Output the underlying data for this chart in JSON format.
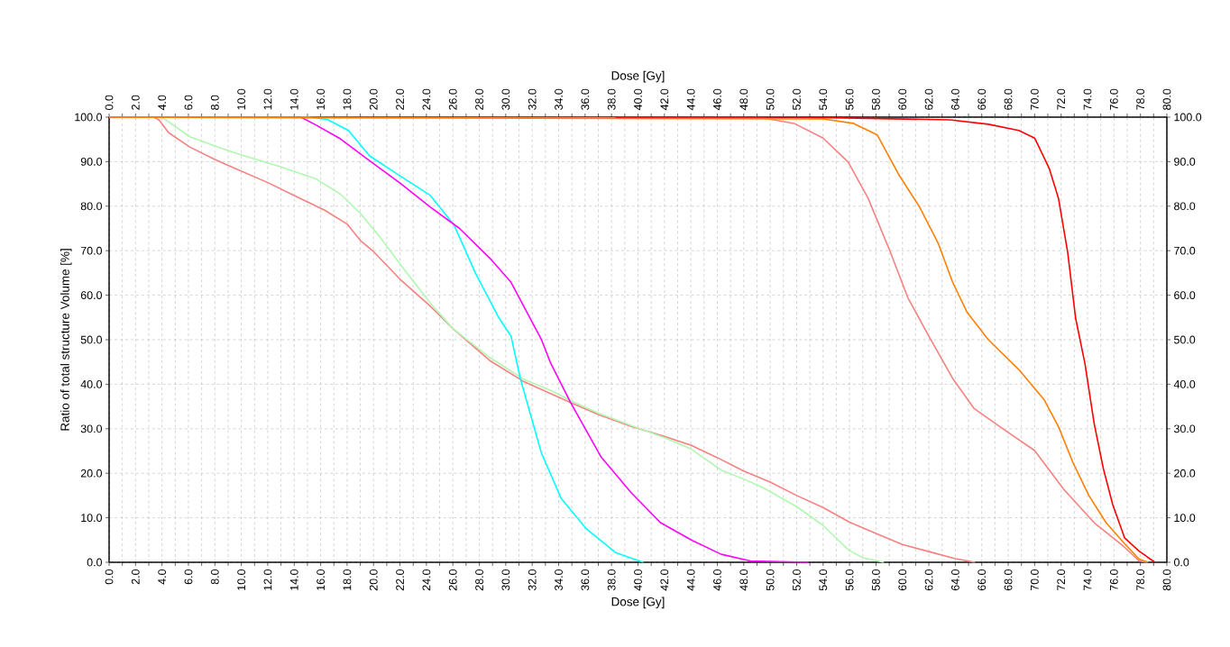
{
  "chart_data": {
    "type": "line",
    "xlabel": "Dose [Gy]",
    "x2label": "Dose [Gy]",
    "ylabel": "Ratio of total structure Volume [%]",
    "grid": true,
    "xlim": [
      0,
      80
    ],
    "x2lim": [
      0,
      80
    ],
    "ylim": [
      0,
      100
    ],
    "y2lim": [
      0,
      100
    ],
    "xticks": [
      {
        "value": 0,
        "label": "0.0"
      },
      {
        "value": 1,
        "label": null
      },
      {
        "value": 2,
        "label": "2.0"
      },
      {
        "value": 3,
        "label": null
      },
      {
        "value": 4,
        "label": "4.0"
      },
      {
        "value": 5,
        "label": null
      },
      {
        "value": 6,
        "label": "6.0"
      },
      {
        "value": 7,
        "label": null
      },
      {
        "value": 8,
        "label": "8.0"
      },
      {
        "value": 9,
        "label": null
      },
      {
        "value": 10,
        "label": "10.0"
      },
      {
        "value": 11,
        "label": null
      },
      {
        "value": 12,
        "label": "12.0"
      },
      {
        "value": 13,
        "label": null
      },
      {
        "value": 14,
        "label": "14.0"
      },
      {
        "value": 15,
        "label": null
      },
      {
        "value": 16,
        "label": "16.0"
      },
      {
        "value": 17,
        "label": null
      },
      {
        "value": 18,
        "label": "18.0"
      },
      {
        "value": 19,
        "label": null
      },
      {
        "value": 20,
        "label": "20.0"
      },
      {
        "value": 21,
        "label": null
      },
      {
        "value": 22,
        "label": "22.0"
      },
      {
        "value": 23,
        "label": null
      },
      {
        "value": 24,
        "label": "24.0"
      },
      {
        "value": 25,
        "label": null
      },
      {
        "value": 26,
        "label": "26.0"
      },
      {
        "value": 27,
        "label": null
      },
      {
        "value": 28,
        "label": "28.0"
      },
      {
        "value": 29,
        "label": null
      },
      {
        "value": 30,
        "label": "30.0"
      },
      {
        "value": 31,
        "label": null
      },
      {
        "value": 32,
        "label": "32.0"
      },
      {
        "value": 33,
        "label": null
      },
      {
        "value": 34,
        "label": "34.0"
      },
      {
        "value": 35,
        "label": null
      },
      {
        "value": 36,
        "label": "36.0"
      },
      {
        "value": 37,
        "label": null
      },
      {
        "value": 38,
        "label": "38.0"
      },
      {
        "value": 39,
        "label": null
      },
      {
        "value": 40,
        "label": "40.0"
      },
      {
        "value": 41,
        "label": null
      },
      {
        "value": 42,
        "label": "42.0"
      },
      {
        "value": 43,
        "label": null
      },
      {
        "value": 44,
        "label": "44.0"
      },
      {
        "value": 45,
        "label": null
      },
      {
        "value": 46,
        "label": "46.0"
      },
      {
        "value": 47,
        "label": null
      },
      {
        "value": 48,
        "label": "48.0"
      },
      {
        "value": 49,
        "label": null
      },
      {
        "value": 50,
        "label": "50.0"
      },
      {
        "value": 51,
        "label": null
      },
      {
        "value": 52,
        "label": "52.0"
      },
      {
        "value": 53,
        "label": null
      },
      {
        "value": 54,
        "label": "54.0"
      },
      {
        "value": 55,
        "label": null
      },
      {
        "value": 56,
        "label": "56.0"
      },
      {
        "value": 57,
        "label": null
      },
      {
        "value": 58,
        "label": "58.0"
      },
      {
        "value": 59,
        "label": null
      },
      {
        "value": 60,
        "label": "60.0"
      },
      {
        "value": 61,
        "label": null
      },
      {
        "value": 62,
        "label": "62.0"
      },
      {
        "value": 63,
        "label": null
      },
      {
        "value": 64,
        "label": "64.0"
      },
      {
        "value": 65,
        "label": null
      },
      {
        "value": 66,
        "label": "66.0"
      },
      {
        "value": 67,
        "label": null
      },
      {
        "value": 68,
        "label": "68.0"
      },
      {
        "value": 69,
        "label": null
      },
      {
        "value": 70,
        "label": "70.0"
      },
      {
        "value": 71,
        "label": null
      },
      {
        "value": 72,
        "label": "72.0"
      },
      {
        "value": 73,
        "label": null
      },
      {
        "value": 74,
        "label": "74.0"
      },
      {
        "value": 75,
        "label": null
      },
      {
        "value": 76,
        "label": "76.0"
      },
      {
        "value": 77,
        "label": null
      },
      {
        "value": 78,
        "label": "78.0"
      },
      {
        "value": 79,
        "label": null
      },
      {
        "value": 80,
        "label": "80.0"
      }
    ],
    "x2ticks": [
      {
        "value": 0,
        "label": "0.0"
      },
      {
        "value": 1,
        "label": null
      },
      {
        "value": 2,
        "label": "2.0"
      },
      {
        "value": 3,
        "label": null
      },
      {
        "value": 4,
        "label": "4.0"
      },
      {
        "value": 5,
        "label": null
      },
      {
        "value": 6,
        "label": "6.0"
      },
      {
        "value": 7,
        "label": null
      },
      {
        "value": 8,
        "label": "8.0"
      },
      {
        "value": 9,
        "label": null
      },
      {
        "value": 10,
        "label": "10.0"
      },
      {
        "value": 11,
        "label": null
      },
      {
        "value": 12,
        "label": "12.0"
      },
      {
        "value": 13,
        "label": null
      },
      {
        "value": 14,
        "label": "14.0"
      },
      {
        "value": 15,
        "label": null
      },
      {
        "value": 16,
        "label": "16.0"
      },
      {
        "value": 17,
        "label": null
      },
      {
        "value": 18,
        "label": "18.0"
      },
      {
        "value": 19,
        "label": null
      },
      {
        "value": 20,
        "label": "20.0"
      },
      {
        "value": 21,
        "label": null
      },
      {
        "value": 22,
        "label": "22.0"
      },
      {
        "value": 23,
        "label": null
      },
      {
        "value": 24,
        "label": "24.0"
      },
      {
        "value": 25,
        "label": null
      },
      {
        "value": 26,
        "label": "26.0"
      },
      {
        "value": 27,
        "label": null
      },
      {
        "value": 28,
        "label": "28.0"
      },
      {
        "value": 29,
        "label": null
      },
      {
        "value": 30,
        "label": "30.0"
      },
      {
        "value": 31,
        "label": null
      },
      {
        "value": 32,
        "label": "32.0"
      },
      {
        "value": 33,
        "label": null
      },
      {
        "value": 34,
        "label": "34.0"
      },
      {
        "value": 35,
        "label": null
      },
      {
        "value": 36,
        "label": "36.0"
      },
      {
        "value": 37,
        "label": null
      },
      {
        "value": 38,
        "label": "38.0"
      },
      {
        "value": 39,
        "label": null
      },
      {
        "value": 40,
        "label": "40.0"
      },
      {
        "value": 41,
        "label": null
      },
      {
        "value": 42,
        "label": "42.0"
      },
      {
        "value": 43,
        "label": null
      },
      {
        "value": 44,
        "label": "44.0"
      },
      {
        "value": 45,
        "label": null
      },
      {
        "value": 46,
        "label": "46.0"
      },
      {
        "value": 47,
        "label": null
      },
      {
        "value": 48,
        "label": "48.0"
      },
      {
        "value": 49,
        "label": null
      },
      {
        "value": 50,
        "label": "50.0"
      },
      {
        "value": 51,
        "label": null
      },
      {
        "value": 52,
        "label": "52.0"
      },
      {
        "value": 53,
        "label": null
      },
      {
        "value": 54,
        "label": "54.0"
      },
      {
        "value": 55,
        "label": null
      },
      {
        "value": 56,
        "label": "56.0"
      },
      {
        "value": 57,
        "label": null
      },
      {
        "value": 58,
        "label": "58.0"
      },
      {
        "value": 59,
        "label": null
      },
      {
        "value": 60,
        "label": "60.0"
      },
      {
        "value": 61,
        "label": null
      },
      {
        "value": 62,
        "label": "62.0"
      },
      {
        "value": 63,
        "label": null
      },
      {
        "value": 64,
        "label": "64.0"
      },
      {
        "value": 65,
        "label": null
      },
      {
        "value": 66,
        "label": "66.0"
      },
      {
        "value": 67,
        "label": null
      },
      {
        "value": 68,
        "label": "68.0"
      },
      {
        "value": 69,
        "label": null
      },
      {
        "value": 70,
        "label": "70.0"
      },
      {
        "value": 71,
        "label": null
      },
      {
        "value": 72,
        "label": "72.0"
      },
      {
        "value": 73,
        "label": null
      },
      {
        "value": 74,
        "label": "74.0"
      },
      {
        "value": 75,
        "label": null
      },
      {
        "value": 76,
        "label": "76.0"
      },
      {
        "value": 77,
        "label": null
      },
      {
        "value": 78,
        "label": "78.0"
      },
      {
        "value": 79,
        "label": null
      },
      {
        "value": 80,
        "label": "80.0"
      }
    ],
    "yticks": [
      {
        "value": 0,
        "label": "0.0"
      },
      {
        "value": 10,
        "label": "10.0"
      },
      {
        "value": 20,
        "label": "20.0"
      },
      {
        "value": 30,
        "label": "30.0"
      },
      {
        "value": 40,
        "label": "40.0"
      },
      {
        "value": 50,
        "label": "50.0"
      },
      {
        "value": 60,
        "label": "60.0"
      },
      {
        "value": 70,
        "label": "70.0"
      },
      {
        "value": 80,
        "label": "80.0"
      },
      {
        "value": 90,
        "label": "90.0"
      },
      {
        "value": 100,
        "label": "100.0"
      }
    ],
    "y2ticks": [
      {
        "value": 0,
        "label": "0.0"
      },
      {
        "value": 10,
        "label": "10.0"
      },
      {
        "value": 20,
        "label": "20.0"
      },
      {
        "value": 30,
        "label": "30.0"
      },
      {
        "value": 40,
        "label": "40.0"
      },
      {
        "value": 50,
        "label": "50.0"
      },
      {
        "value": 60,
        "label": "60.0"
      },
      {
        "value": 70,
        "label": "70.0"
      },
      {
        "value": 80,
        "label": "80.0"
      },
      {
        "value": 90,
        "label": "90.0"
      },
      {
        "value": 100,
        "label": "100.0"
      }
    ],
    "series": [
      {
        "color": "#f88080",
        "x": [
          0,
          3.4,
          3.8,
          4.5,
          6.1,
          8,
          9.5,
          12,
          14,
          16.3,
          18,
          19,
          20,
          22,
          24.3,
          26,
          28.8,
          31.3,
          34.9,
          37,
          39.5,
          42,
          44,
          46,
          48,
          50,
          52,
          54,
          56,
          58,
          60,
          62,
          64,
          65.5
        ],
        "values": [
          100,
          100,
          99.3,
          96.5,
          93.3,
          90.5,
          88.5,
          85.3,
          82.4,
          79.1,
          76,
          72.3,
          69.8,
          63.6,
          57.5,
          52.5,
          45.3,
          40.7,
          35.9,
          33.2,
          30.5,
          28.3,
          26.3,
          23.5,
          20.5,
          18,
          15,
          12.3,
          9,
          6.5,
          4,
          2.4,
          0.8,
          0
        ]
      },
      {
        "color": "#b0f8b0",
        "x": [
          0,
          4,
          6.1,
          8,
          10,
          12.9,
          15.6,
          17.5,
          19,
          20.5,
          22,
          24.3,
          26,
          28.8,
          31.3,
          33.4,
          35,
          37,
          39.5,
          42,
          44,
          46.3,
          48,
          49.5,
          52,
          54,
          55.9,
          57,
          58.6
        ],
        "values": [
          100,
          100,
          95.6,
          93.5,
          91.5,
          88.9,
          86.2,
          82.7,
          78.4,
          73,
          67,
          58.2,
          52.5,
          46,
          41.2,
          38.6,
          36.2,
          33.5,
          30.7,
          28,
          25.5,
          20.7,
          18.7,
          16.7,
          12.5,
          8.3,
          2.8,
          1,
          0
        ]
      },
      {
        "color": "#00ffff",
        "x": [
          0,
          15.1,
          16.5,
          18.1,
          19.7,
          22,
          24.3,
          26.1,
          27.7,
          29.5,
          30.4,
          31.1,
          32.7,
          34.2,
          36.1,
          38.3,
          40.4
        ],
        "values": [
          100,
          100,
          99.5,
          97,
          91.3,
          86.8,
          82.4,
          75.7,
          65,
          54.8,
          50.8,
          41.3,
          24.5,
          14.3,
          7.5,
          2.2,
          0
        ]
      },
      {
        "color": "#ff00ff",
        "x": [
          0,
          14.5,
          15.6,
          17.4,
          19.7,
          22,
          24.3,
          26.5,
          28.8,
          30.4,
          32.2,
          32.7,
          33.4,
          34.9,
          37.2,
          39.5,
          41.7,
          44.1,
          46.3,
          48.5,
          52.9
        ],
        "values": [
          100,
          100,
          98.3,
          95.3,
          90.2,
          85.2,
          79.8,
          75,
          68.3,
          62.9,
          52.8,
          50,
          44.7,
          35.9,
          23.7,
          15.6,
          8.9,
          4.9,
          1.8,
          0.3,
          0
        ]
      },
      {
        "color": "#f88080",
        "x": [
          0,
          49.5,
          51.8,
          54,
          55.9,
          57.4,
          59.1,
          60.4,
          62,
          63.8,
          65.4,
          67.7,
          70,
          72.2,
          74.5,
          76.8,
          77.9,
          78.5
        ],
        "values": [
          100,
          99.8,
          98.6,
          95.3,
          89.9,
          81.8,
          69.6,
          59.5,
          50.8,
          41.3,
          34.6,
          29.8,
          25.1,
          16.4,
          8.9,
          3.4,
          0.3,
          0
        ]
      },
      {
        "color": "#ff8000",
        "x": [
          0,
          54,
          56.3,
          58.1,
          59.7,
          61.3,
          62.7,
          63.8,
          64.9,
          66.5,
          68.8,
          70.7,
          71.8,
          72.9,
          74.1,
          75.4,
          76.8,
          77.9,
          78.6
        ],
        "values": [
          100,
          99.6,
          98.6,
          96,
          87.2,
          79.8,
          71.7,
          62.9,
          56.1,
          50,
          43.3,
          36.6,
          30.5,
          22.4,
          15,
          8.9,
          4.2,
          0.7,
          0
        ]
      },
      {
        "color": "#ff0000",
        "x": [
          38.3,
          52,
          63.6,
          66.5,
          68.8,
          70,
          71.1,
          71.8,
          72.5,
          73.1,
          73.8,
          74.5,
          75.2,
          75.9,
          76.8,
          77.9,
          79.1
        ],
        "values": [
          100,
          100,
          99.4,
          98.4,
          97,
          95.3,
          88.5,
          81.8,
          69.6,
          54.8,
          44.7,
          31.2,
          21,
          13,
          5.5,
          2.5,
          0
        ]
      }
    ]
  }
}
